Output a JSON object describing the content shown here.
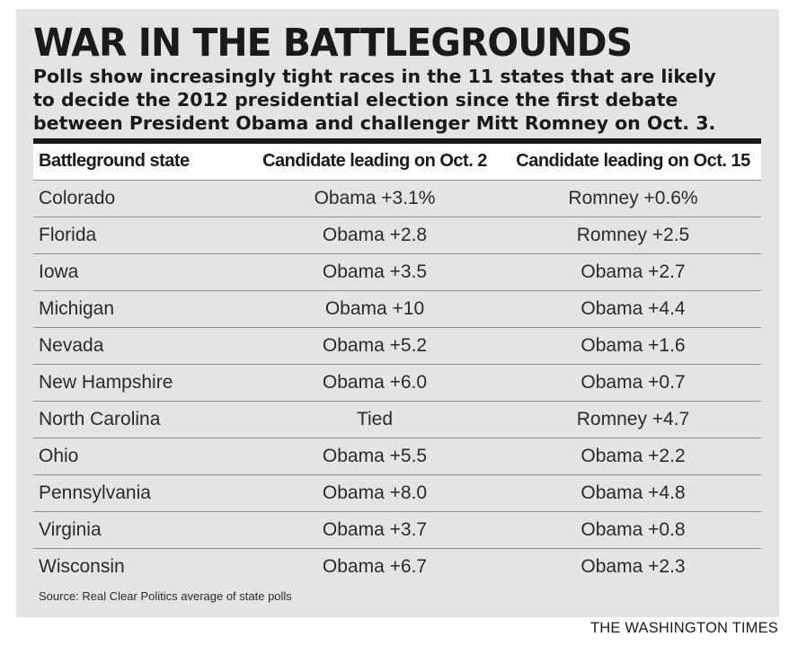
{
  "title": "WAR IN THE BATTLEGROUNDS",
  "subtitle": "Polls show increasingly tight races in the 11 states that are likely\nto decide the 2012 presidential election since the first debate\nbetween President Obama and challenger Mitt Romney on Oct. 3.",
  "source": "Source: Real Clear Politics average of state polls",
  "brand": "THE WASHINGTON TIMES",
  "colors": {
    "background_panel": "#e4e4e4",
    "text": "#1a1a1a",
    "rule": "#1a1a1a",
    "row_divider": "#8d8d8d"
  },
  "chart_data": {
    "type": "table",
    "title": "WAR IN THE BATTLEGROUNDS",
    "columns": [
      "Battleground state",
      "Candidate leading on Oct. 2",
      "Candidate leading on Oct. 15"
    ],
    "rows": [
      [
        "Colorado",
        "Obama +3.1%",
        "Romney +0.6%"
      ],
      [
        "Florida",
        "Obama +2.8",
        "Romney +2.5"
      ],
      [
        "Iowa",
        "Obama +3.5",
        "Obama +2.7"
      ],
      [
        "Michigan",
        "Obama +10",
        "Obama +4.4"
      ],
      [
        "Nevada",
        "Obama +5.2",
        "Obama +1.6"
      ],
      [
        "New Hampshire",
        "Obama +6.0",
        "Obama +0.7"
      ],
      [
        "North Carolina",
        "Tied",
        "Romney +4.7"
      ],
      [
        "Ohio",
        "Obama +5.5",
        "Obama +2.2"
      ],
      [
        "Pennsylvania",
        "Obama +8.0",
        "Obama +4.8"
      ],
      [
        "Virginia",
        "Obama +3.7",
        "Obama +0.8"
      ],
      [
        "Wisconsin",
        "Obama +6.7",
        "Obama +2.3"
      ]
    ]
  }
}
